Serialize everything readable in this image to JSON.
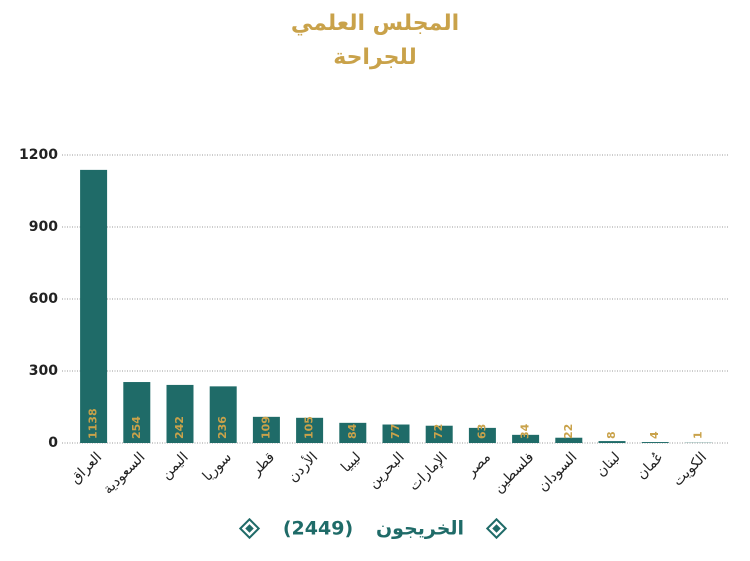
{
  "chart_data": {
    "type": "bar",
    "title_lines": [
      "المجلس العلمي",
      "للجراحة"
    ],
    "categories": [
      "العراق",
      "السعودية",
      "اليمن",
      "سوريا",
      "قطر",
      "الأردن",
      "ليبيا",
      "البحرين",
      "الإمارات",
      "مصر",
      "فلسطين",
      "السودان",
      "لبنان",
      "عُمان",
      "الكويت"
    ],
    "series": [
      {
        "name": "الخريجون",
        "color": "#1f6b68",
        "values": [
          1138,
          254,
          242,
          236,
          109,
          105,
          84,
          77,
          72,
          63,
          34,
          22,
          8,
          4,
          1
        ]
      }
    ],
    "legend_total": {
      "value": 2449,
      "label": "(2449)"
    },
    "value_label_color": "#c9a24a",
    "ylim": [
      0,
      1200
    ],
    "yticks": [
      0,
      300,
      600,
      900,
      1200
    ],
    "grid": true
  }
}
